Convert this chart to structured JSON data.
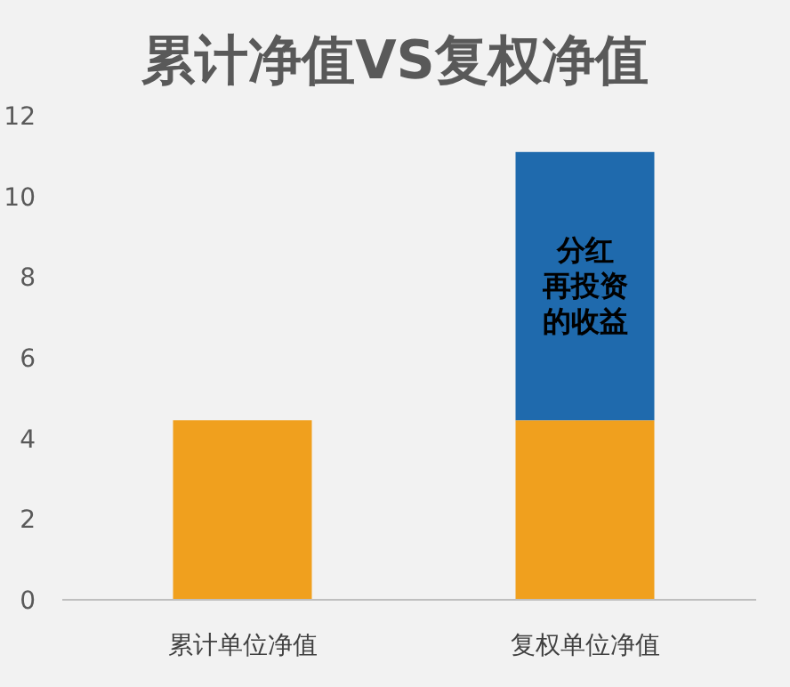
{
  "chart_data": {
    "type": "bar",
    "stacked": true,
    "title": "累计净值VS复权净值",
    "categories": [
      "累计单位净值",
      "复权单位净值"
    ],
    "series": [
      {
        "color": "#f0a01e",
        "values": [
          4.45,
          4.45
        ]
      },
      {
        "color": "#1f6aad",
        "values": [
          null,
          6.65
        ]
      }
    ],
    "ylim": [
      0,
      12
    ],
    "yticks": [
      0,
      2,
      4,
      6,
      8,
      10,
      12
    ],
    "grid": false,
    "annotations": [
      "分红再投资的收益"
    ]
  }
}
